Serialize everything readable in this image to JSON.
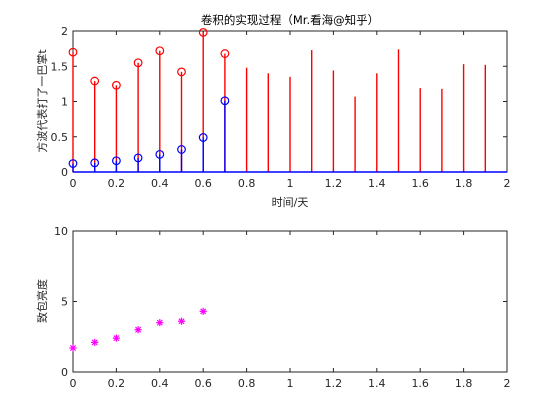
{
  "colors": {
    "red": "#ff0000",
    "blue": "#0000ff",
    "magenta": "#ff00ff",
    "axis": "#262626"
  },
  "chart_data": [
    {
      "type": "stem",
      "title": "卷积的实现过程（Mr.看海@知乎）",
      "xlabel": "时间/天",
      "ylabel": "方波代表打了一巴掌t",
      "xlim": [
        0,
        2
      ],
      "ylim": [
        0,
        2
      ],
      "xticks": [
        "0",
        "0.2",
        "0.4",
        "0.6",
        "0.8",
        "1",
        "1.2",
        "1.4",
        "1.6",
        "1.8",
        "2"
      ],
      "yticks": [
        "0",
        "0.5",
        "1",
        "1.5",
        "2"
      ],
      "grid": false,
      "series": [
        {
          "color": "#ff0000",
          "marker": "circle",
          "x": [
            0,
            0.1,
            0.2,
            0.3,
            0.4,
            0.5,
            0.6,
            0.7
          ],
          "y": [
            1.7,
            1.29,
            1.23,
            1.55,
            1.72,
            1.42,
            1.98,
            1.68
          ]
        },
        {
          "color": "#ff0000",
          "marker": "none",
          "x": [
            0.8,
            0.9,
            1.0,
            1.1,
            1.2,
            1.3,
            1.4,
            1.5,
            1.6,
            1.7,
            1.8,
            1.9
          ],
          "y": [
            1.48,
            1.4,
            1.35,
            1.73,
            1.44,
            1.07,
            1.4,
            1.74,
            1.19,
            1.18,
            1.53,
            1.52
          ]
        },
        {
          "color": "#0000ff",
          "marker": "circle",
          "x": [
            0,
            0.1,
            0.2,
            0.3,
            0.4,
            0.5,
            0.6,
            0.7
          ],
          "y": [
            0.12,
            0.13,
            0.16,
            0.2,
            0.25,
            0.32,
            0.49,
            1.01
          ]
        }
      ]
    },
    {
      "type": "scatter",
      "title": "",
      "xlabel": "",
      "ylabel": "致包亮度",
      "xlim": [
        0,
        2
      ],
      "ylim": [
        0,
        10
      ],
      "xticks": [
        "0",
        "0.2",
        "0.4",
        "0.6",
        "0.8",
        "1",
        "1.2",
        "1.4",
        "1.6",
        "1.8",
        "2"
      ],
      "yticks": [
        "0",
        "5",
        "10"
      ],
      "grid": false,
      "series": [
        {
          "color": "#ff00ff",
          "marker": "asterisk",
          "x": [
            0,
            0.1,
            0.2,
            0.3,
            0.4,
            0.5,
            0.6
          ],
          "y": [
            1.7,
            2.1,
            2.4,
            3.0,
            3.5,
            3.6,
            4.3
          ]
        }
      ]
    }
  ]
}
